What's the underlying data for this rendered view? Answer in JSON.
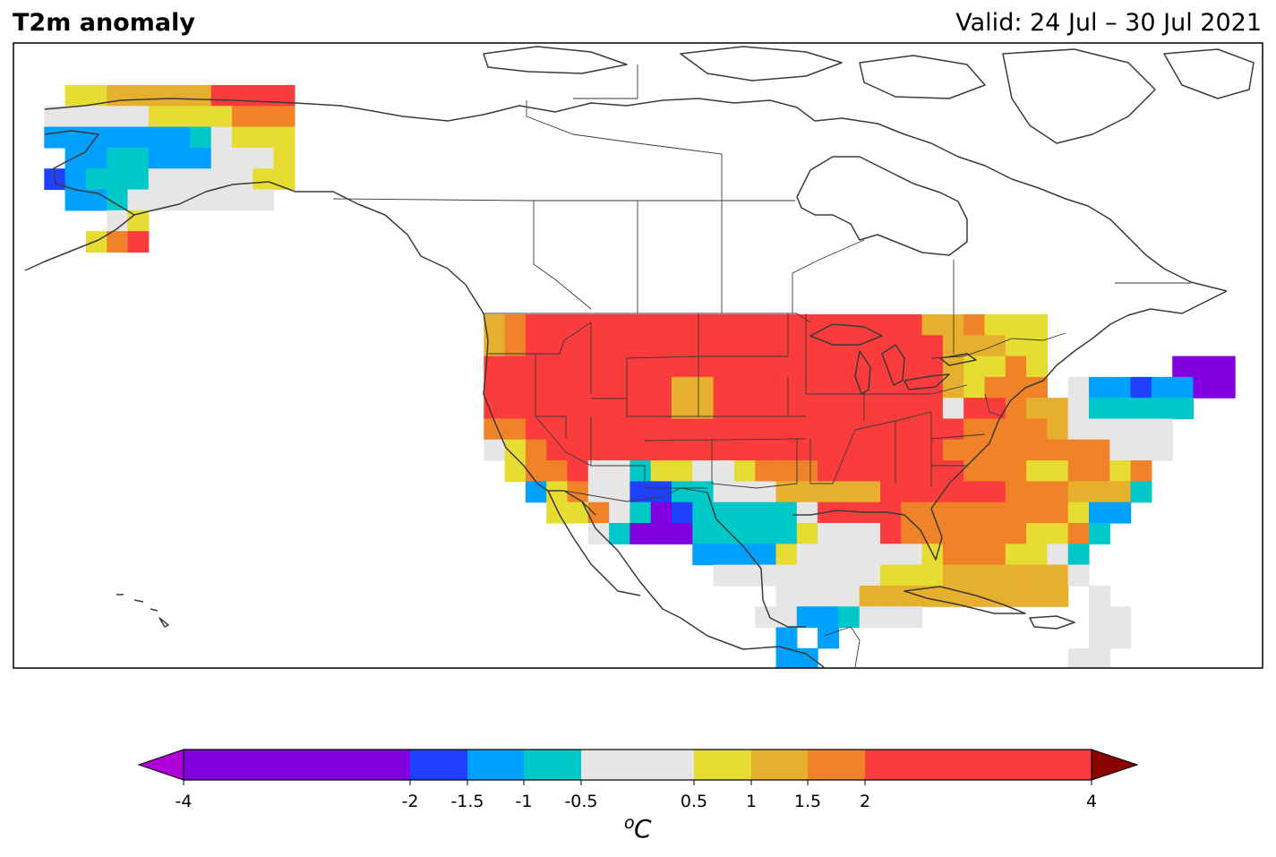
{
  "title": "T2m anomaly",
  "valid": "Valid: 24 Jul – 30 Jul 2021",
  "colorbar": {
    "unit": "C",
    "unit_superscript": "o",
    "ticks": [
      "-4",
      "-2",
      "-1.5",
      "-1",
      "-0.5",
      "0.5",
      "1",
      "1.5",
      "2",
      "4"
    ],
    "extend_low_color": "#b000d8",
    "extend_high_color": "#8b0000",
    "bins": [
      {
        "from": -4,
        "to": -2,
        "color": "#8000e0"
      },
      {
        "from": -2,
        "to": -1.5,
        "color": "#2040ff"
      },
      {
        "from": -1.5,
        "to": -1,
        "color": "#00a0ff"
      },
      {
        "from": -1,
        "to": -0.5,
        "color": "#00c8c8"
      },
      {
        "from": -0.5,
        "to": 0.5,
        "color": "#e6e6e6"
      },
      {
        "from": 0.5,
        "to": 1,
        "color": "#e6dc32"
      },
      {
        "from": 1,
        "to": 1.5,
        "color": "#e6af2d"
      },
      {
        "from": 1.5,
        "to": 2,
        "color": "#f08228"
      },
      {
        "from": 2,
        "to": 4,
        "color": "#fa3c3c"
      }
    ]
  },
  "map": {
    "region": "North America",
    "legend": {
      "P": "#8000e0",
      "B": "#2040ff",
      "L": "#00a0ff",
      "C": "#00c8c8",
      "G": "#e6e6e6",
      "Y": "#e6dc32",
      "O": "#e6af2d",
      "D": "#f08228",
      "R": "#fa3c3c"
    },
    "alaska_grid": [
      "..YYOOOOORRRR",
      ".GGGGGYYYYDDD",
      ".LLLLLLLCGYYY",
      "..LLCCLLLGGGY",
      ".BLCCCGGGGGYY",
      "..LLCGGGGGGG.",
      "....GY.......",
      "...YDR......."
    ],
    "conus_grid": [
      ".ODRRRRRRRRRRRRRRRRRRROODYYY.........",
      ".ODRRRRRRRRRRRRRRRRRRRROOOYY.........",
      ".RRRRRRRRRRRRRRRRRRRRRROYYDY......PPP",
      ".RRRRRRRRROORRRRRRRRRRROYDDD.GLLBLLPP",
      ".RRRRRRRRROORRRRRRRRRRRGRRDOOGCCCCC..",
      ".DDRRRRRRRRRRRRRRRRRRRRRDDDDOGGGGG...",
      ".GYDRRRRRRRRRRRRRRRRRRRDDDDDDDDGGG...",
      "..YDDRGGCYYGGYDDDRRRRRRRDDDYYDDYD....",
      "...LYDGGBBCCGGGOOOOORRRRRRDDDOOOC....",
      "....YYDGCPBCCCCCGRRRRDDDDDDDDYLL.....",
      "......GCPPPCCCCCYGGGRDDDDDDYYDC......",
      "...........LLLLYGGGGGGYDDDYYGC.......",
      "............GGGGGGGGYYYOOOOOOG.......",
      "...............GGGGOOOOOOOOOO.G......",
      "..............GGLLCGGG........GG.....",
      "...............L.L............GG.....",
      "...............LL............GG......"
    ]
  }
}
